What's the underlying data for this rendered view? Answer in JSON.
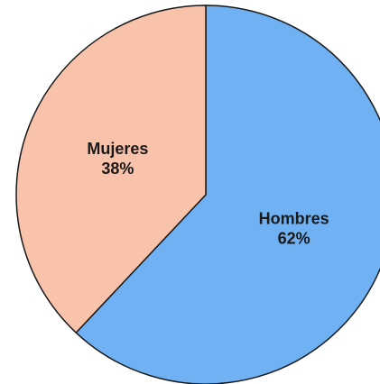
{
  "chart_data": {
    "type": "pie",
    "categories": [
      "Hombres",
      "Mujeres"
    ],
    "values": [
      62,
      38
    ],
    "value_labels": [
      "62%",
      "38%"
    ],
    "colors": [
      "#6fb1f2",
      "#f9c2aa"
    ]
  }
}
